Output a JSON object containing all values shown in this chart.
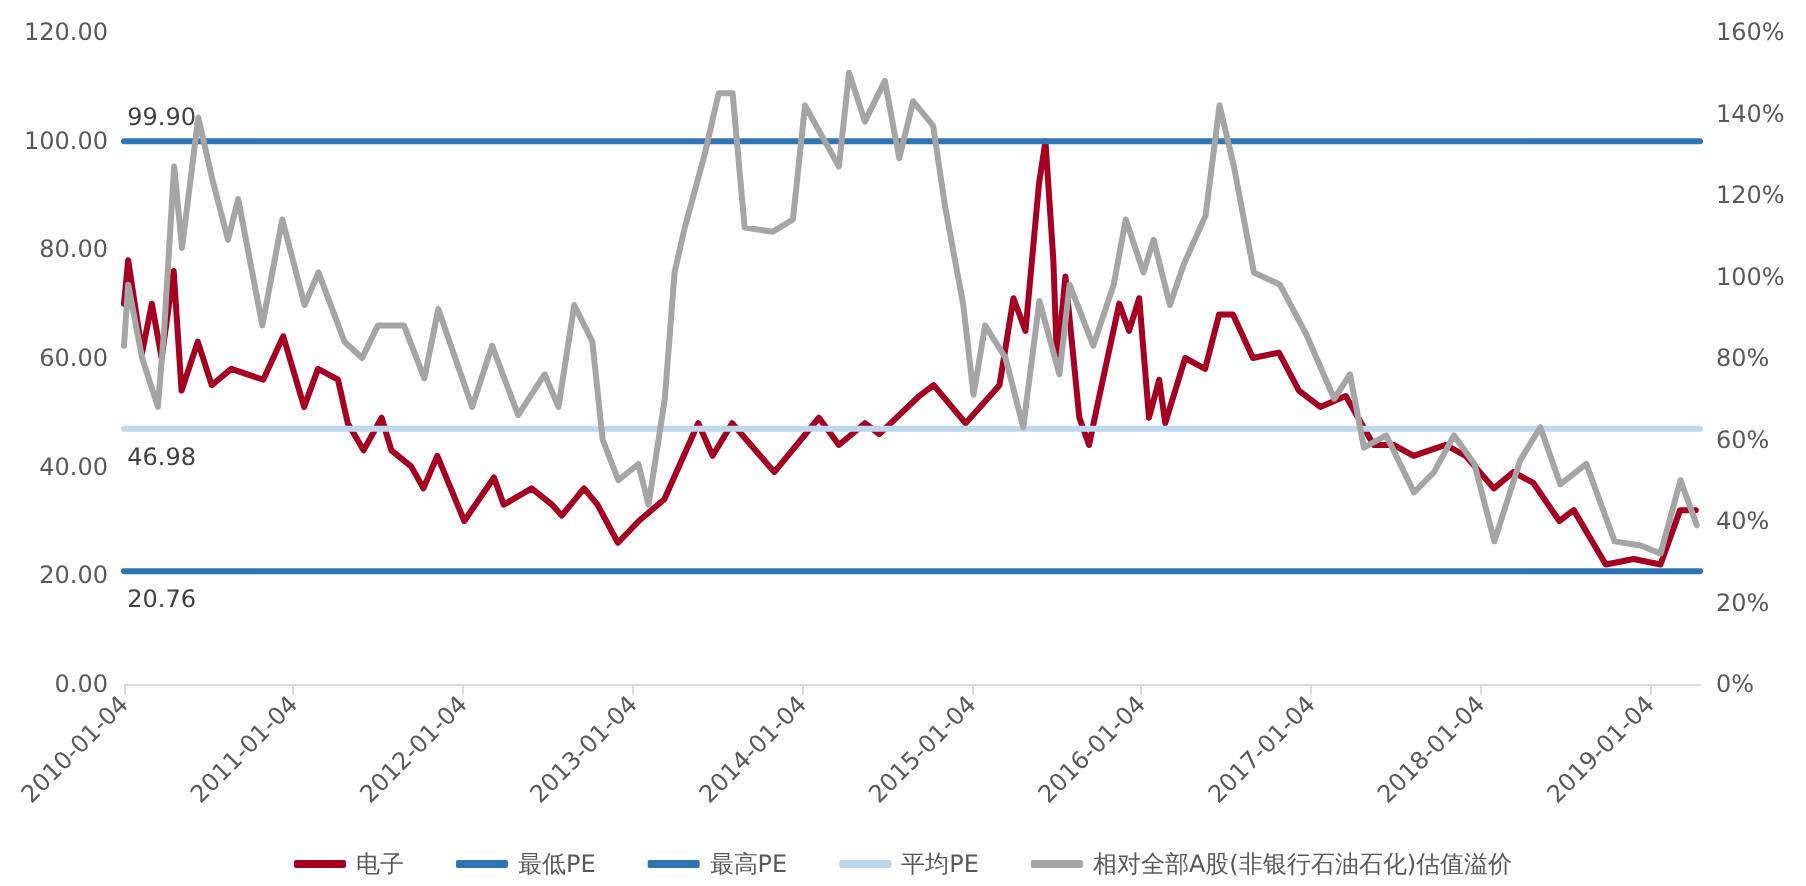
{
  "chart_data": {
    "type": "line",
    "xlim": [
      "2010-01-04",
      "2019-04-22"
    ],
    "xticks": [
      "2010-01-04",
      "2011-01-04",
      "2012-01-04",
      "2013-01-04",
      "2014-01-04",
      "2015-01-04",
      "2016-01-04",
      "2017-01-04",
      "2018-01-04",
      "2019-01-04"
    ],
    "ylim": [
      0,
      120
    ],
    "yticks": [
      {
        "value": 0,
        "label": "0.00"
      },
      {
        "value": 20,
        "label": "20.00"
      },
      {
        "value": 40,
        "label": "40.00"
      },
      {
        "value": 60,
        "label": "60.00"
      },
      {
        "value": 80,
        "label": "80.00"
      },
      {
        "value": 100,
        "label": "100.00"
      },
      {
        "value": 120,
        "label": "120.00"
      }
    ],
    "y2lim": [
      0,
      160
    ],
    "y2ticks": [
      {
        "value": 0,
        "label": "0%"
      },
      {
        "value": 20,
        "label": "20%"
      },
      {
        "value": 40,
        "label": "40%"
      },
      {
        "value": 60,
        "label": "60%"
      },
      {
        "value": 80,
        "label": "80%"
      },
      {
        "value": 100,
        "label": "100%"
      },
      {
        "value": 120,
        "label": "120%"
      },
      {
        "value": 140,
        "label": "140%"
      },
      {
        "value": 160,
        "label": "160%"
      }
    ],
    "grid": false,
    "legend": "bottom",
    "marker": "none",
    "line_style": "solid",
    "series": [
      {
        "name": "电子",
        "color": "#a50021",
        "x": [
          "2010-01-04",
          "2010-01-13",
          "2010-02-12",
          "2010-03-05",
          "2010-03-26",
          "2010-04-21",
          "2010-05-08",
          "2010-06-12",
          "2010-07-12",
          "2010-08-23",
          "2010-10-31",
          "2010-12-13",
          "2011-01-27",
          "2011-02-26",
          "2011-04-10",
          "2011-05-01",
          "2011-06-04",
          "2011-07-13",
          "2011-08-03",
          "2011-09-15",
          "2011-10-11",
          "2011-11-10",
          "2012-01-07",
          "2012-03-11",
          "2012-04-01",
          "2012-05-31",
          "2012-07-14",
          "2012-08-04",
          "2012-09-21",
          "2012-10-20",
          "2012-12-03",
          "2013-01-17",
          "2013-03-13",
          "2013-05-25",
          "2013-06-25",
          "2013-08-06",
          "2013-11-05",
          "2014-02-09",
          "2014-03-24",
          "2014-05-19",
          "2014-06-19",
          "2014-09-13",
          "2014-10-14",
          "2014-12-22",
          "2015-03-05",
          "2015-04-04",
          "2015-04-30",
          "2015-05-29",
          "2015-06-12",
          "2015-06-29",
          "2015-07-07",
          "2015-07-25",
          "2015-08-24",
          "2015-09-14",
          "2015-10-06",
          "2015-11-18",
          "2015-12-09",
          "2015-12-31",
          "2016-01-21",
          "2016-02-12",
          "2016-02-25",
          "2016-04-08",
          "2016-05-21",
          "2016-06-20",
          "2016-07-20",
          "2016-09-01",
          "2016-10-27",
          "2016-12-09",
          "2017-01-24",
          "2017-03-20",
          "2017-05-19",
          "2017-07-01",
          "2017-08-13",
          "2017-10-21",
          "2017-12-03",
          "2018-02-02",
          "2018-03-16",
          "2018-04-28",
          "2018-06-23",
          "2018-07-24",
          "2018-10-01",
          "2018-11-30",
          "2019-01-27",
          "2019-03-10",
          "2019-04-13"
        ],
        "values": [
          70,
          78,
          61,
          70,
          60,
          76,
          54,
          63,
          55,
          58,
          56,
          64,
          51,
          58,
          56,
          48,
          43,
          49,
          43,
          40,
          36,
          42,
          30,
          38,
          33,
          36,
          33,
          31,
          36,
          33,
          26,
          30,
          34,
          48,
          42,
          48,
          39,
          49,
          44,
          48,
          46,
          53,
          55,
          48,
          55,
          71,
          65,
          92,
          99.9,
          78,
          59,
          75,
          49,
          44,
          53,
          70,
          65,
          71,
          49,
          56,
          48,
          60,
          58,
          68,
          68,
          60,
          61,
          54,
          51,
          53,
          44,
          44,
          42,
          44,
          42,
          36,
          39,
          37,
          30,
          32,
          22,
          23,
          22,
          32,
          32
        ]
      },
      {
        "name": "最低PE",
        "color": "#2e75b6",
        "x": [
          "2010-01-04",
          "2019-04-22"
        ],
        "values": [
          20.76,
          20.76
        ]
      },
      {
        "name": "最高PE",
        "color": "#2e75b6",
        "x": [
          "2010-01-04",
          "2019-04-22"
        ],
        "values": [
          99.9,
          99.9
        ]
      },
      {
        "name": "平均PE",
        "color": "#bdd7ee",
        "x": [
          "2010-01-04",
          "2019-04-22"
        ],
        "values": [
          46.98,
          46.98
        ]
      },
      {
        "name": "相对全部A股(非银行石油石化)估值溢价",
        "color": "#a5a5a5",
        "axis": "y2",
        "x": [
          "2010-01-04",
          "2010-01-13",
          "2010-02-12",
          "2010-03-18",
          "2010-03-31",
          "2010-04-22",
          "2010-05-09",
          "2010-06-13",
          "2010-07-13",
          "2010-08-16",
          "2010-09-07",
          "2010-10-29",
          "2010-12-11",
          "2011-01-28",
          "2011-02-27",
          "2011-04-24",
          "2011-06-01",
          "2011-07-05",
          "2011-08-30",
          "2011-10-13",
          "2011-11-12",
          "2012-01-24",
          "2012-03-07",
          "2012-05-02",
          "2012-06-28",
          "2012-07-28",
          "2012-08-31",
          "2012-10-09",
          "2012-10-31",
          "2012-12-04",
          "2013-01-16",
          "2013-02-07",
          "2013-03-14",
          "2013-04-04",
          "2013-04-26",
          "2013-06-08",
          "2013-07-08",
          "2013-08-07",
          "2013-09-02",
          "2013-11-02",
          "2013-12-15",
          "2014-01-10",
          "2014-03-24",
          "2014-04-15",
          "2014-05-19",
          "2014-07-01",
          "2014-08-01",
          "2014-08-31",
          "2014-10-13",
          "2014-11-08",
          "2014-12-17",
          "2015-01-08",
          "2015-02-02",
          "2015-03-18",
          "2015-04-25",
          "2015-05-30",
          "2015-07-12",
          "2015-08-03",
          "2015-09-23",
          "2015-11-06",
          "2015-12-02",
          "2016-01-09",
          "2016-01-31",
          "2016-03-06",
          "2016-04-05",
          "2016-05-22",
          "2016-06-21",
          "2016-07-22",
          "2016-09-03",
          "2016-10-29",
          "2016-12-24",
          "2017-02-23",
          "2017-03-29",
          "2017-04-28",
          "2017-06-15",
          "2017-08-14",
          "2017-09-26",
          "2017-11-08",
          "2017-12-22",
          "2018-02-03",
          "2018-03-31",
          "2018-05-13",
          "2018-06-25",
          "2018-08-20",
          "2018-10-20",
          "2018-12-15",
          "2019-01-27",
          "2019-03-11",
          "2019-04-15"
        ],
        "values": [
          83,
          98,
          80,
          68,
          86,
          127,
          107,
          139,
          124,
          109,
          119,
          88,
          114,
          93,
          101,
          84,
          80,
          88,
          88,
          75,
          92,
          68,
          83,
          66,
          76,
          68,
          93,
          84,
          60,
          50,
          54,
          44,
          70,
          101,
          112,
          130,
          145,
          145,
          112,
          111,
          114,
          142,
          127,
          150,
          138,
          148,
          129,
          143,
          137,
          117,
          93,
          71,
          88,
          80,
          63,
          94,
          76,
          98,
          83,
          98,
          114,
          101,
          109,
          93,
          103,
          115,
          142,
          127,
          101,
          98,
          86,
          70,
          76,
          58,
          61,
          47,
          52,
          61,
          54,
          35,
          55,
          63,
          49,
          54,
          35,
          34,
          32,
          50,
          39
        ]
      }
    ],
    "annotations": [
      {
        "text": "99.90",
        "x": "2010-03-26",
        "y": 99.9
      },
      {
        "text": "46.98",
        "x": "2010-03-26",
        "y": 46.98
      },
      {
        "text": "20.76",
        "x": "2010-03-26",
        "y": 20.76
      }
    ]
  }
}
